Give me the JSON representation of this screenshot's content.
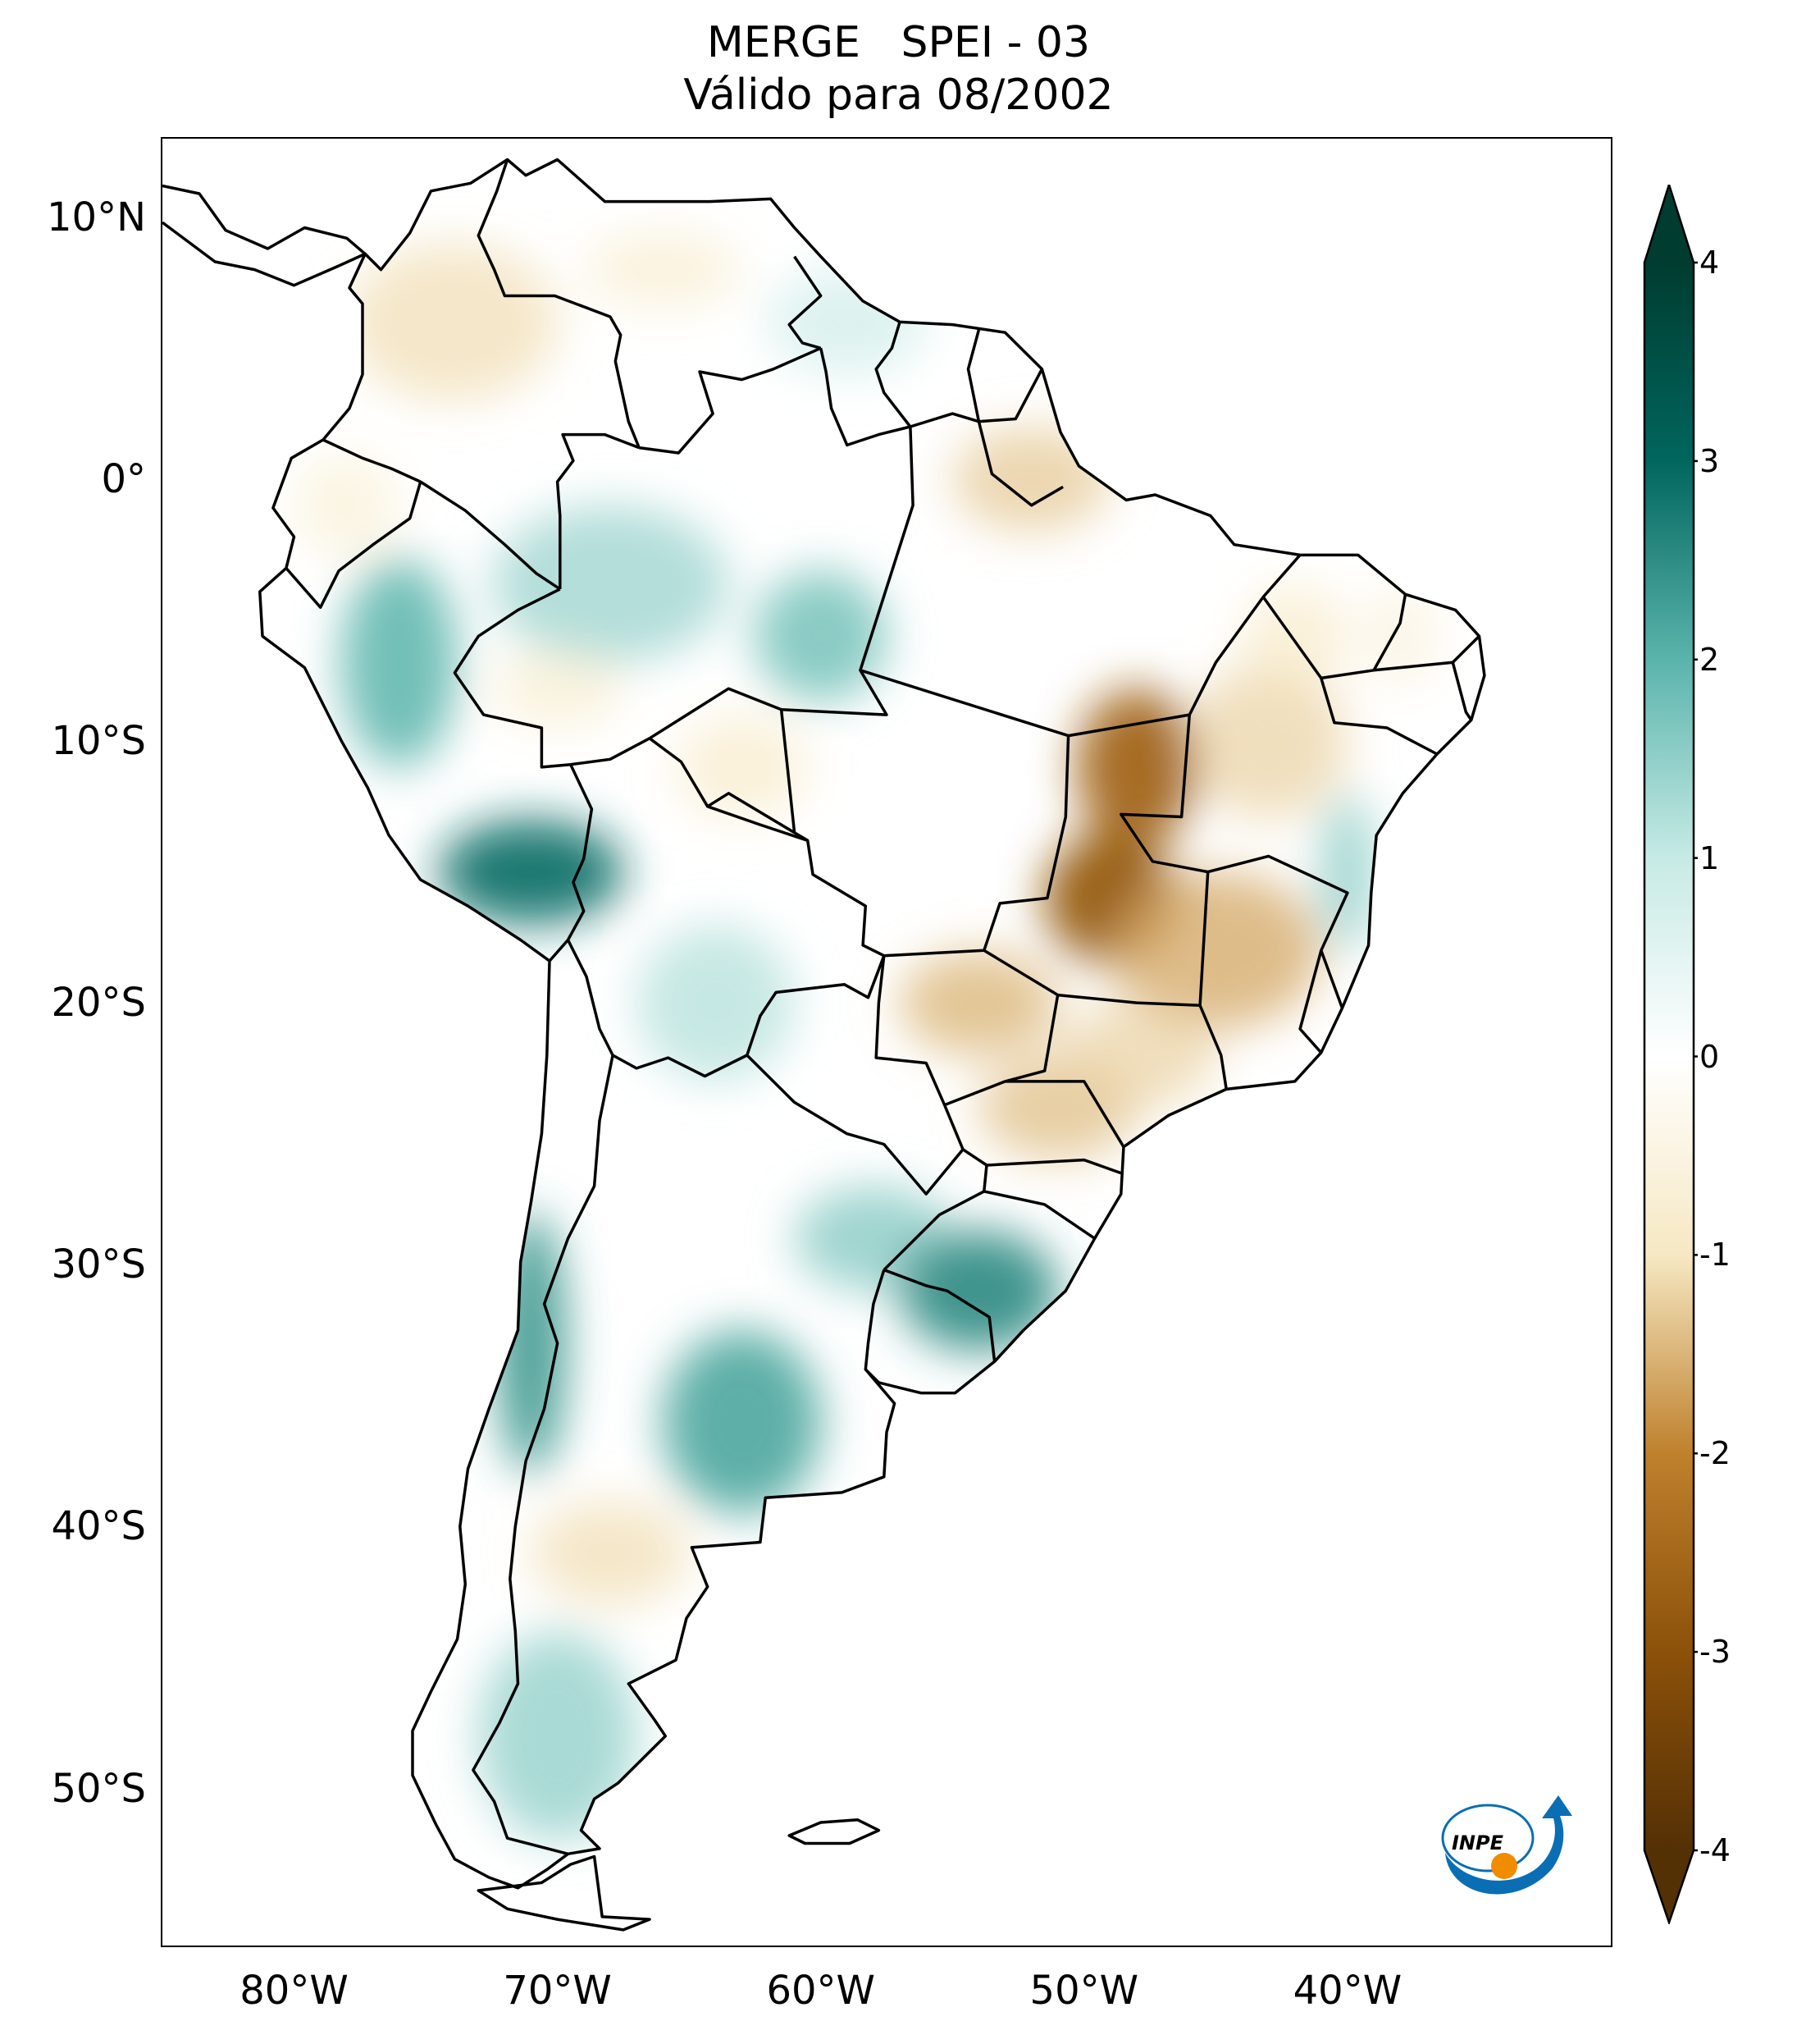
{
  "title": {
    "line1": "MERGE   SPEI - 03",
    "line2": "Válido para 08/2002"
  },
  "map": {
    "region": "South America",
    "extent": {
      "lon_min": -85,
      "lon_max": -30,
      "lat_min": -56,
      "lat_max": 13
    },
    "lat_ticks": [
      {
        "value": 10,
        "label": "10°N"
      },
      {
        "value": 0,
        "label": "0°"
      },
      {
        "value": -10,
        "label": "10°S"
      },
      {
        "value": -20,
        "label": "20°S"
      },
      {
        "value": -30,
        "label": "30°S"
      },
      {
        "value": -40,
        "label": "40°S"
      },
      {
        "value": -50,
        "label": "50°S"
      }
    ],
    "lon_ticks": [
      {
        "value": -80,
        "label": "80°W"
      },
      {
        "value": -70,
        "label": "70°W"
      },
      {
        "value": -60,
        "label": "60°W"
      },
      {
        "value": -50,
        "label": "50°W"
      },
      {
        "value": -40,
        "label": "40°W"
      }
    ],
    "colors": {
      "dry": "#8c510a",
      "wet": "#01665e",
      "neutral": "#ffffff",
      "border": "#000000"
    },
    "spei_features": [
      {
        "name": "amazon-wet-1",
        "lon": -68,
        "lat": -4,
        "value": 1.4,
        "rx": 4.5,
        "ry": 3
      },
      {
        "name": "amazon-wet-2",
        "lon": -60,
        "lat": -6,
        "value": 1.8,
        "rx": 2.5,
        "ry": 2.5
      },
      {
        "name": "peru-wet",
        "lon": -76,
        "lat": -7,
        "value": 2.0,
        "rx": 2.2,
        "ry": 4
      },
      {
        "name": "peru-south-wet",
        "lon": -71,
        "lat": -15,
        "value": 2.8,
        "rx": 3.5,
        "ry": 2
      },
      {
        "name": "bolivia-wet",
        "lon": -64,
        "lat": -20,
        "value": 1.2,
        "rx": 3,
        "ry": 3
      },
      {
        "name": "chile-central-wet",
        "lon": -71,
        "lat": -33,
        "value": 2.4,
        "rx": 1.3,
        "ry": 5
      },
      {
        "name": "argentina-wet-1",
        "lon": -63,
        "lat": -36,
        "value": 2.2,
        "rx": 3,
        "ry": 3.5
      },
      {
        "name": "argentina-wet-2",
        "lon": -58,
        "lat": -29,
        "value": 1.6,
        "rx": 3,
        "ry": 2
      },
      {
        "name": "rio-grande-do-sul-wet",
        "lon": -54,
        "lat": -31,
        "value": 2.5,
        "rx": 3,
        "ry": 2.3
      },
      {
        "name": "patagonia-wet",
        "lon": -70,
        "lat": -48,
        "value": 1.5,
        "rx": 3,
        "ry": 4
      },
      {
        "name": "bahia-coast-wet",
        "lon": -40,
        "lat": -15,
        "value": 1.6,
        "rx": 1,
        "ry": 3
      },
      {
        "name": "guyana-wet",
        "lon": -59,
        "lat": 6,
        "value": 0.9,
        "rx": 3,
        "ry": 2
      },
      {
        "name": "colombia-dry",
        "lon": -74,
        "lat": 6,
        "value": -1.1,
        "rx": 4,
        "ry": 3
      },
      {
        "name": "venezuela-dry",
        "lon": -66,
        "lat": 8,
        "value": -0.8,
        "rx": 3,
        "ry": 1.5
      },
      {
        "name": "para-dry",
        "lon": -52,
        "lat": 0,
        "value": -1.3,
        "rx": 3,
        "ry": 2
      },
      {
        "name": "tocantins-dry",
        "lon": -48,
        "lat": -11,
        "value": -2.6,
        "rx": 2.3,
        "ry": 3
      },
      {
        "name": "goias-dry",
        "lon": -49,
        "lat": -16,
        "value": -2.8,
        "rx": 2.5,
        "ry": 2.5
      },
      {
        "name": "minas-gerais-dry",
        "lon": -45,
        "lat": -18,
        "value": -1.6,
        "rx": 4,
        "ry": 3
      },
      {
        "name": "bahia-dry",
        "lon": -43,
        "lat": -10,
        "value": -1.2,
        "rx": 3,
        "ry": 3
      },
      {
        "name": "mato-grosso-do-sul-dry",
        "lon": -54,
        "lat": -20,
        "value": -1.5,
        "rx": 3,
        "ry": 2
      },
      {
        "name": "parana-dry",
        "lon": -51,
        "lat": -24,
        "value": -1.4,
        "rx": 3,
        "ry": 2
      },
      {
        "name": "sao-paulo-dry",
        "lon": -48,
        "lat": -22,
        "value": -1.2,
        "rx": 3,
        "ry": 2
      },
      {
        "name": "piaui-dry",
        "lon": -42,
        "lat": -6,
        "value": -0.9,
        "rx": 2,
        "ry": 2
      },
      {
        "name": "rondonia-dry",
        "lon": -63,
        "lat": -11,
        "value": -0.9,
        "rx": 2.5,
        "ry": 2
      },
      {
        "name": "acre-dry",
        "lon": -70,
        "lat": -8,
        "value": -0.8,
        "rx": 2.5,
        "ry": 1.5
      },
      {
        "name": "patagonia-north-dry",
        "lon": -68,
        "lat": -41,
        "value": -1.1,
        "rx": 3,
        "ry": 2
      },
      {
        "name": "ecuador-dry",
        "lon": -78,
        "lat": -1,
        "value": -0.7,
        "rx": 2,
        "ry": 2
      },
      {
        "name": "northeast-coast-dry",
        "lon": -38,
        "lat": -6,
        "value": -0.6,
        "rx": 1.5,
        "ry": 2
      }
    ]
  },
  "colorbar": {
    "min": -4,
    "max": 4,
    "extend": "both",
    "ticks": [
      {
        "value": 4,
        "label": "4"
      },
      {
        "value": 3,
        "label": "3"
      },
      {
        "value": 2,
        "label": "2"
      },
      {
        "value": 1,
        "label": "1"
      },
      {
        "value": 0,
        "label": "0"
      },
      {
        "value": -1,
        "label": "-1"
      },
      {
        "value": -2,
        "label": "-2"
      },
      {
        "value": -3,
        "label": "-3"
      },
      {
        "value": -4,
        "label": "-4"
      }
    ],
    "stops": [
      {
        "value": -4,
        "color": "#543005"
      },
      {
        "value": -3,
        "color": "#8c510a"
      },
      {
        "value": -2,
        "color": "#bf812d"
      },
      {
        "value": -1,
        "color": "#f6e8c3"
      },
      {
        "value": 0,
        "color": "#ffffff"
      },
      {
        "value": 1,
        "color": "#c7eae5"
      },
      {
        "value": 2,
        "color": "#5ab4ac"
      },
      {
        "value": 3,
        "color": "#01665e"
      },
      {
        "value": 4,
        "color": "#003c30"
      }
    ]
  },
  "logo": {
    "text": "INPE",
    "blue": "#0a6eb4",
    "orange": "#f08c00"
  }
}
